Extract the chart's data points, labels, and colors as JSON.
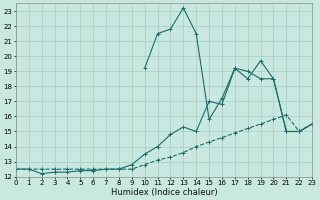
{
  "xlabel": "Humidex (Indice chaleur)",
  "bg_color": "#c8e8e0",
  "grid_color": "#a8ccc4",
  "line_color": "#1a6b6b",
  "xlim": [
    0,
    23
  ],
  "ylim": [
    12,
    23.5
  ],
  "xticks": [
    0,
    1,
    2,
    3,
    4,
    5,
    6,
    7,
    8,
    9,
    10,
    11,
    12,
    13,
    14,
    15,
    16,
    17,
    18,
    19,
    20,
    21,
    22,
    23
  ],
  "yticks": [
    12,
    13,
    14,
    15,
    16,
    17,
    18,
    19,
    20,
    21,
    22,
    23
  ],
  "s1_x": [
    0,
    1,
    2,
    3,
    4,
    5,
    6,
    7,
    8,
    9,
    10,
    11,
    12,
    13,
    14,
    15,
    16,
    17,
    18,
    19,
    20,
    21,
    22,
    23
  ],
  "s1_y": [
    12.5,
    12.5,
    12.5,
    12.5,
    12.5,
    12.5,
    12.5,
    12.5,
    12.5,
    12.5,
    12.8,
    13.1,
    13.3,
    13.6,
    14.0,
    14.3,
    14.6,
    14.9,
    15.2,
    15.5,
    15.8,
    16.1,
    15.0,
    15.5
  ],
  "s2_x": [
    0,
    1,
    2,
    3,
    4,
    5,
    6,
    7,
    8,
    9,
    10,
    11,
    12,
    13,
    14,
    15,
    16,
    17,
    18,
    19,
    20,
    21,
    22,
    23
  ],
  "s2_y": [
    12.5,
    12.5,
    12.2,
    12.3,
    12.3,
    12.4,
    12.4,
    12.5,
    12.5,
    12.8,
    13.5,
    14.0,
    14.8,
    15.3,
    15.0,
    17.0,
    16.8,
    19.2,
    19.0,
    18.5,
    18.5,
    15.0,
    15.0,
    15.5
  ],
  "s3_x": [
    10,
    11,
    12,
    13,
    14,
    15,
    16,
    17,
    18,
    19,
    20,
    21,
    22,
    23
  ],
  "s3_y": [
    19.2,
    21.5,
    21.8,
    23.2,
    21.5,
    15.8,
    17.2,
    19.2,
    18.5,
    19.7,
    18.5,
    15.0,
    15.0,
    15.5
  ]
}
